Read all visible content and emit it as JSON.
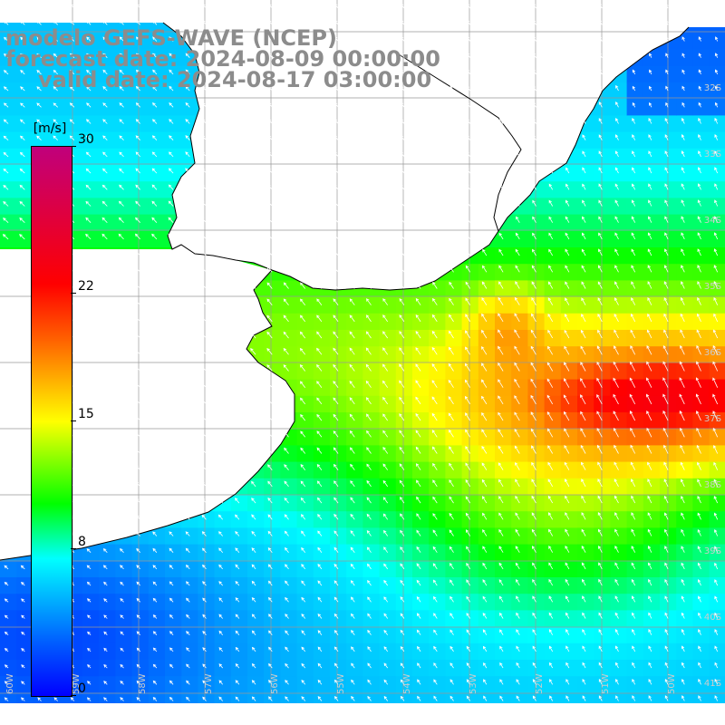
{
  "title": {
    "model": "modelo GEFS-WAVE (NCEP)",
    "forecast": "forecast date: 2024-08-09 00:00:00",
    "valid": "valid date: 2024-08-17 03:00:00"
  },
  "colorbar": {
    "unit": "m/s",
    "ticks": [
      {
        "label": "30",
        "value": 30
      },
      {
        "label": "22",
        "value": 22
      },
      {
        "label": "15",
        "value": 15
      },
      {
        "label": "8",
        "value": 8
      },
      {
        "label": "0",
        "value": 0
      }
    ],
    "vmin": 0,
    "vmax": 30
  },
  "map": {
    "lat_labels": [
      "32S",
      "33S",
      "34S",
      "35S",
      "36S",
      "37S",
      "38S",
      "39S",
      "40S",
      "41S"
    ],
    "lon_labels": [
      "60W",
      "59W",
      "58W",
      "57W",
      "56W",
      "55W",
      "54W",
      "53W",
      "52W",
      "51W",
      "50W"
    ],
    "colors": {
      "grid": "#999999",
      "coast": "#000000",
      "land": "#ffffff",
      "arrow": "#ffffff"
    }
  }
}
